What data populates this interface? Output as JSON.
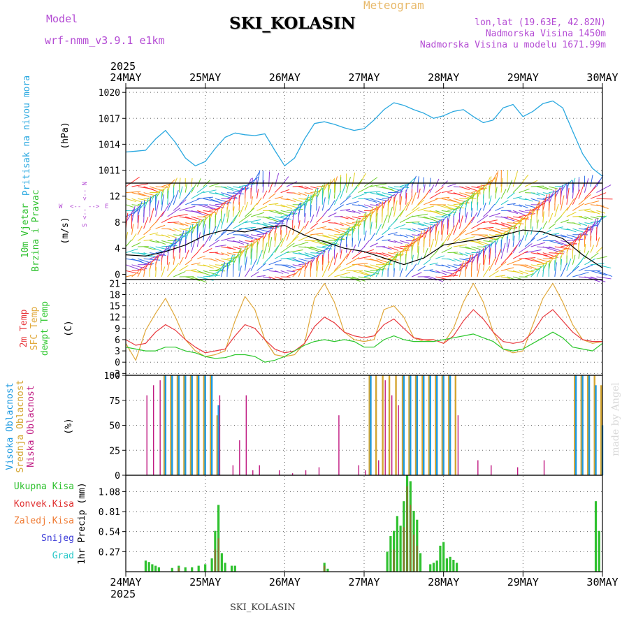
{
  "header": {
    "model_label": "Model",
    "model_name": "wrf-nmm_v3.9.1 e1km",
    "station": "SKI_KOLASIN",
    "product": "Meteogram",
    "coords": "lon,lat (19.63E, 42.82N)",
    "elevation": "Nadmorska Visina 1450m",
    "model_elevation": "Nadmorska Visina u modelu 1671.99m",
    "credit": "made by Angel"
  },
  "time_axis": {
    "year": "2025",
    "ticks": [
      "24MAY",
      "25MAY",
      "26MAY",
      "27MAY",
      "28MAY",
      "29MAY",
      "30MAY"
    ]
  },
  "footer": {
    "station": "SKI_KOLASIN"
  },
  "colors": {
    "pressure": "#29a8e0",
    "t2m": "#e8383d",
    "sfc": "#e0a83a",
    "dew": "#2cc72c",
    "high_cloud": "#1e9ae0",
    "mid_cloud": "#d4a530",
    "low_cloud": "#c01a82",
    "total_precip": "#2fc12f",
    "conv_precip": "#e03030",
    "frz_precip": "#ef7a32",
    "snow": "#3b3bd8",
    "hail": "#27c8c8",
    "wind_speed": "#000000",
    "purple_text": "#b44cd4"
  },
  "chart_data": [
    {
      "type": "line",
      "panel": "pressure",
      "ylabel": [
        "Pritisak na nivou mora",
        "(hPa)"
      ],
      "yticks": [
        1011,
        1014,
        1017,
        1020
      ],
      "ylim": [
        1009.5,
        1020.5
      ],
      "x_hours": [
        0,
        3,
        6,
        9,
        12,
        15,
        18,
        21,
        24,
        27,
        30,
        33,
        36,
        39,
        42,
        45,
        48,
        51,
        54,
        57,
        60,
        63,
        66,
        69,
        72,
        75,
        78,
        81,
        84,
        87,
        90,
        93,
        96,
        99,
        102,
        105,
        108,
        111,
        114,
        117,
        120,
        123,
        126,
        129,
        132,
        135,
        138,
        141,
        144
      ],
      "series": [
        {
          "values": [
            1013.1,
            1013.2,
            1013.3,
            1014.6,
            1015.6,
            1014.2,
            1012.4,
            1011.5,
            1012.0,
            1013.5,
            1014.8,
            1015.3,
            1015.1,
            1015.0,
            1015.2,
            1013.3,
            1011.5,
            1012.4,
            1014.6,
            1016.4,
            1016.6,
            1016.3,
            1015.9,
            1015.6,
            1015.8,
            1016.8,
            1018.0,
            1018.8,
            1018.5,
            1018.0,
            1017.6,
            1017.0,
            1017.3,
            1017.8,
            1018.0,
            1017.2,
            1016.5,
            1016.8,
            1018.2,
            1018.6,
            1017.2,
            1017.8,
            1018.7,
            1019.0,
            1018.2,
            1015.5,
            1012.9,
            1011.2,
            1010.3
          ]
        }
      ]
    },
    {
      "type": "wind",
      "panel": "wind",
      "ylabel": [
        "10m Vjetar",
        "Brzina i Pravac",
        "(m/s)"
      ],
      "compass": {
        "n": "N",
        "s": "S",
        "e": "E",
        "w": "W"
      },
      "yticks": [
        0,
        4,
        8,
        12
      ],
      "ylim": [
        -0.8,
        14
      ],
      "x_hours": [
        0,
        6,
        12,
        18,
        24,
        30,
        36,
        42,
        48,
        54,
        60,
        66,
        72,
        78,
        84,
        90,
        96,
        102,
        108,
        114,
        120,
        126,
        132,
        138,
        144
      ],
      "series": [
        {
          "name": "speed",
          "values": [
            3.0,
            2.8,
            3.5,
            4.5,
            6.0,
            6.8,
            6.5,
            7.2,
            7.5,
            6.0,
            5.0,
            4.0,
            3.5,
            2.5,
            1.5,
            2.5,
            4.5,
            5.0,
            5.5,
            6.0,
            6.8,
            6.5,
            5.5,
            3.0,
            1.0
          ]
        }
      ]
    },
    {
      "type": "line",
      "panel": "temperature",
      "ylabel": [
        "2m Temp",
        "SFC Temp",
        "dewpt Temp",
        "(C)"
      ],
      "yticks": [
        -3,
        0,
        3,
        6,
        9,
        12,
        15,
        18,
        21
      ],
      "ylim": [
        -3.5,
        22
      ],
      "x_hours": [
        0,
        3,
        6,
        9,
        12,
        15,
        18,
        21,
        24,
        27,
        30,
        33,
        36,
        39,
        42,
        45,
        48,
        51,
        54,
        57,
        60,
        63,
        66,
        69,
        72,
        75,
        78,
        81,
        84,
        87,
        90,
        93,
        96,
        99,
        102,
        105,
        108,
        111,
        114,
        117,
        120,
        123,
        126,
        129,
        132,
        135,
        138,
        141,
        144
      ],
      "series": [
        {
          "name": "2m Temp",
          "values": [
            6.0,
            4.5,
            5.0,
            8.0,
            10.0,
            8.5,
            6.0,
            4.0,
            2.5,
            3.0,
            3.5,
            7.0,
            10.0,
            9.0,
            6.0,
            3.5,
            2.5,
            3.0,
            5.0,
            9.5,
            12.0,
            10.5,
            8.0,
            7.0,
            6.5,
            7.0,
            10.0,
            11.5,
            9.0,
            6.5,
            6.0,
            6.0,
            5.0,
            7.0,
            11.0,
            14.0,
            11.5,
            8.0,
            5.5,
            5.0,
            5.5,
            8.0,
            12.0,
            14.0,
            11.0,
            8.0,
            6.0,
            5.5,
            5.5
          ]
        },
        {
          "name": "SFC Temp",
          "values": [
            5.0,
            0.5,
            8.5,
            13.0,
            17.0,
            12.0,
            6.0,
            3.0,
            1.5,
            2.0,
            3.0,
            11.0,
            17.5,
            14.0,
            6.0,
            2.0,
            1.5,
            2.0,
            5.0,
            17.0,
            21.0,
            16.0,
            8.0,
            6.0,
            5.5,
            6.0,
            14.0,
            15.0,
            12.0,
            6.5,
            5.5,
            6.0,
            5.0,
            9.0,
            16.0,
            21.0,
            16.0,
            8.0,
            3.5,
            2.5,
            3.0,
            10.0,
            17.0,
            21.0,
            16.0,
            10.0,
            6.0,
            5.0,
            5.5
          ]
        },
        {
          "name": "dewpt Temp",
          "values": [
            4.0,
            3.5,
            3.0,
            3.0,
            4.0,
            4.0,
            3.0,
            2.5,
            1.5,
            1.0,
            1.2,
            2.0,
            2.0,
            1.5,
            0.0,
            0.5,
            1.5,
            3.0,
            4.5,
            5.5,
            6.0,
            5.5,
            6.0,
            5.5,
            4.0,
            4.0,
            6.0,
            7.0,
            6.0,
            5.5,
            5.5,
            5.5,
            6.0,
            6.5,
            7.0,
            7.5,
            6.5,
            5.5,
            3.5,
            3.0,
            3.5,
            5.0,
            6.5,
            8.0,
            6.5,
            4.0,
            3.5,
            3.0,
            5.0
          ]
        }
      ]
    },
    {
      "type": "bar",
      "panel": "clouds",
      "ylabel": [
        "Visoka Oblacnost",
        "Srednja Oblacnost",
        "Niska Oblacnost",
        "(%)"
      ],
      "yticks": [
        0,
        25,
        50,
        75,
        100
      ],
      "ylim": [
        0,
        100
      ],
      "x_hours": [
        0,
        2,
        4,
        6,
        8,
        10,
        12,
        14,
        16,
        18,
        20,
        22,
        24,
        26,
        28,
        30,
        32,
        34,
        36,
        38,
        40,
        42,
        44,
        46,
        48,
        50,
        52,
        54,
        56,
        58,
        60,
        62,
        64,
        66,
        68,
        70,
        72,
        74,
        76,
        78,
        80,
        82,
        84,
        86,
        88,
        90,
        92,
        94,
        96,
        98,
        100,
        102,
        104,
        106,
        108,
        110,
        112,
        114,
        116,
        118,
        120,
        122,
        124,
        126,
        128,
        130,
        132,
        134,
        136,
        138,
        140,
        142,
        144
      ],
      "series": [
        {
          "name": "Visoka Oblacnost",
          "values": [
            0,
            0,
            0,
            0,
            0,
            0,
            100,
            100,
            100,
            100,
            100,
            100,
            100,
            100,
            70,
            0,
            0,
            0,
            0,
            0,
            0,
            0,
            0,
            0,
            0,
            0,
            0,
            0,
            0,
            0,
            0,
            0,
            0,
            0,
            0,
            0,
            0,
            100,
            0,
            0,
            0,
            0,
            100,
            100,
            100,
            100,
            100,
            100,
            100,
            100,
            0,
            0,
            0,
            0,
            0,
            0,
            0,
            0,
            0,
            0,
            0,
            0,
            0,
            0,
            0,
            0,
            0,
            0,
            100,
            100,
            100,
            90,
            50
          ]
        },
        {
          "name": "Srednja Oblacnost",
          "values": [
            0,
            0,
            0,
            0,
            0,
            0,
            100,
            100,
            100,
            100,
            100,
            100,
            100,
            100,
            60,
            0,
            0,
            0,
            0,
            0,
            0,
            0,
            0,
            0,
            0,
            0,
            0,
            0,
            0,
            0,
            0,
            0,
            0,
            0,
            0,
            0,
            0,
            100,
            100,
            100,
            100,
            100,
            100,
            100,
            100,
            100,
            100,
            100,
            100,
            100,
            100,
            0,
            0,
            0,
            0,
            0,
            0,
            0,
            0,
            0,
            0,
            0,
            0,
            0,
            0,
            0,
            0,
            0,
            100,
            100,
            100,
            100,
            90
          ]
        },
        {
          "name": "Niska Oblacnost",
          "values": [
            0,
            0,
            0,
            80,
            90,
            95,
            0,
            0,
            0,
            0,
            0,
            0,
            0,
            0,
            80,
            0,
            10,
            35,
            80,
            5,
            10,
            0,
            0,
            5,
            0,
            2,
            0,
            5,
            0,
            8,
            0,
            0,
            60,
            0,
            0,
            10,
            5,
            0,
            15,
            95,
            80,
            70,
            0,
            0,
            0,
            0,
            0,
            0,
            0,
            0,
            60,
            0,
            0,
            15,
            0,
            10,
            0,
            0,
            0,
            8,
            0,
            0,
            0,
            15,
            0,
            0,
            0,
            0,
            0,
            0,
            0,
            0,
            0
          ]
        }
      ]
    },
    {
      "type": "bar",
      "panel": "precipitation",
      "ylabel": [
        "1hr Precip (mm)"
      ],
      "legend": [
        "Ukupna Kisa",
        "Konvek.Kisa",
        "Zaledj.Kisa",
        "Snijeg",
        "Grad"
      ],
      "yticks": [
        0.27,
        0.54,
        0.81,
        1.08
      ],
      "ylim": [
        0,
        1.3
      ],
      "series": [
        {
          "name": "Ukupna Kisa",
          "points": [
            [
              6,
              0.15
            ],
            [
              7,
              0.13
            ],
            [
              8,
              0.1
            ],
            [
              9,
              0.08
            ],
            [
              10,
              0.06
            ],
            [
              14,
              0.05
            ],
            [
              16,
              0.08
            ],
            [
              18,
              0.06
            ],
            [
              20,
              0.06
            ],
            [
              22,
              0.08
            ],
            [
              24,
              0.1
            ],
            [
              26,
              0.18
            ],
            [
              27,
              0.55
            ],
            [
              28,
              0.9
            ],
            [
              29,
              0.25
            ],
            [
              30,
              0.12
            ],
            [
              32,
              0.08
            ],
            [
              33,
              0.08
            ],
            [
              60,
              0.12
            ],
            [
              61,
              0.04
            ],
            [
              79,
              0.27
            ],
            [
              80,
              0.48
            ],
            [
              81,
              0.55
            ],
            [
              82,
              0.75
            ],
            [
              83,
              0.62
            ],
            [
              84,
              0.95
            ],
            [
              85,
              1.3
            ],
            [
              86,
              1.22
            ],
            [
              87,
              0.82
            ],
            [
              88,
              0.7
            ],
            [
              89,
              0.25
            ],
            [
              92,
              0.1
            ],
            [
              93,
              0.12
            ],
            [
              94,
              0.15
            ],
            [
              95,
              0.35
            ],
            [
              96,
              0.4
            ],
            [
              97,
              0.18
            ],
            [
              98,
              0.2
            ],
            [
              99,
              0.16
            ],
            [
              100,
              0.12
            ],
            [
              142,
              0.95
            ],
            [
              143,
              0.55
            ]
          ]
        },
        {
          "name": "Konvek.Kisa",
          "points": [
            [
              16,
              0.05
            ],
            [
              27,
              0.3
            ],
            [
              28,
              0.45
            ],
            [
              60,
              0.08
            ],
            [
              81,
              0.3
            ],
            [
              84,
              0.6
            ],
            [
              85,
              1.15
            ],
            [
              86,
              0.9
            ],
            [
              87,
              0.5
            ],
            [
              88,
              0.35
            ]
          ]
        }
      ]
    }
  ]
}
